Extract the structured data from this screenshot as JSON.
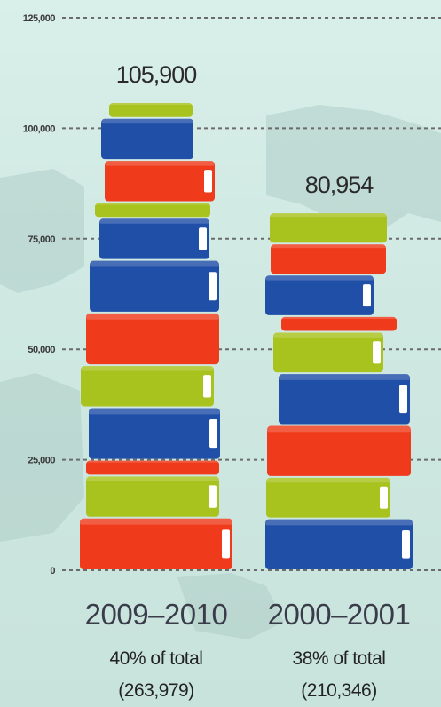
{
  "chart_data": {
    "type": "bar",
    "categories": [
      "2009–2010",
      "2000–2001"
    ],
    "values": [
      105900,
      80954
    ],
    "value_labels": [
      "105,900",
      "80,954"
    ],
    "subtitles": [
      [
        "40% of total",
        "(263,979)"
      ],
      [
        "38% of total",
        "(210,346)"
      ]
    ],
    "ylim": [
      0,
      125000
    ],
    "yticks": [
      0,
      25000,
      50000,
      75000,
      100000,
      125000
    ],
    "ytick_labels": [
      "0",
      "25,000",
      "50,000",
      "75,000",
      "100,000",
      "125,000"
    ],
    "grid": true,
    "style": "stacked-books",
    "colors": {
      "red": "#ef3b1c",
      "blue": "#1f4fa6",
      "green": "#a8c21e",
      "pages": "#ffffff",
      "grid": "#6b6b6b",
      "map": "#a9c8c2"
    }
  }
}
